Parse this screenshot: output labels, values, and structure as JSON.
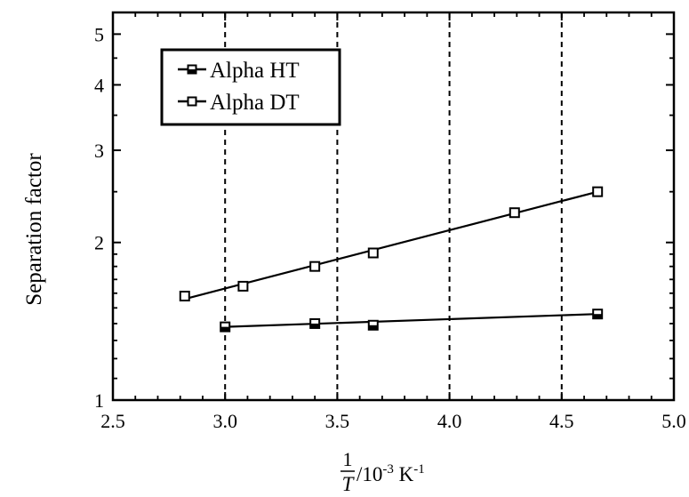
{
  "chart_data": {
    "type": "scatter",
    "title": "",
    "xlabel": {
      "numerator": "1",
      "denominator": "T",
      "rest": "/10",
      "exponent": "-3",
      "unit": " K",
      "unit_exponent": "-1"
    },
    "ylabel": "Separation factor",
    "xlim": [
      2.5,
      5.0
    ],
    "ylim": [
      1,
      5.5
    ],
    "yscale": "log",
    "x_ticks": [
      "2.5",
      "3.0",
      "3.5",
      "4.0",
      "4.5",
      "5.0"
    ],
    "x_tick_values": [
      2.5,
      3.0,
      3.5,
      4.0,
      4.5,
      5.0
    ],
    "y_ticks": [
      "1",
      "2",
      "3",
      "4",
      "5"
    ],
    "y_tick_values": [
      1,
      2,
      3,
      4,
      5
    ],
    "grid": "vertical dashed lines at x = 3.0, 3.5, 4.0, 4.5",
    "legend_position": "top-left",
    "series": [
      {
        "name": "Alpha HT",
        "marker": "filled-square",
        "x": [
          3.0,
          3.4,
          3.66,
          4.66
        ],
        "y": [
          1.38,
          1.4,
          1.39,
          1.46
        ],
        "fit_x": [
          3.0,
          4.66
        ],
        "fit_y": [
          1.38,
          1.46
        ]
      },
      {
        "name": "Alpha DT",
        "marker": "open-square",
        "x": [
          2.82,
          3.08,
          3.4,
          3.66,
          4.29,
          4.66
        ],
        "y": [
          1.58,
          1.65,
          1.8,
          1.91,
          2.28,
          2.5
        ],
        "fit_x": [
          2.82,
          4.66
        ],
        "fit_y": [
          1.56,
          2.5
        ]
      }
    ]
  }
}
